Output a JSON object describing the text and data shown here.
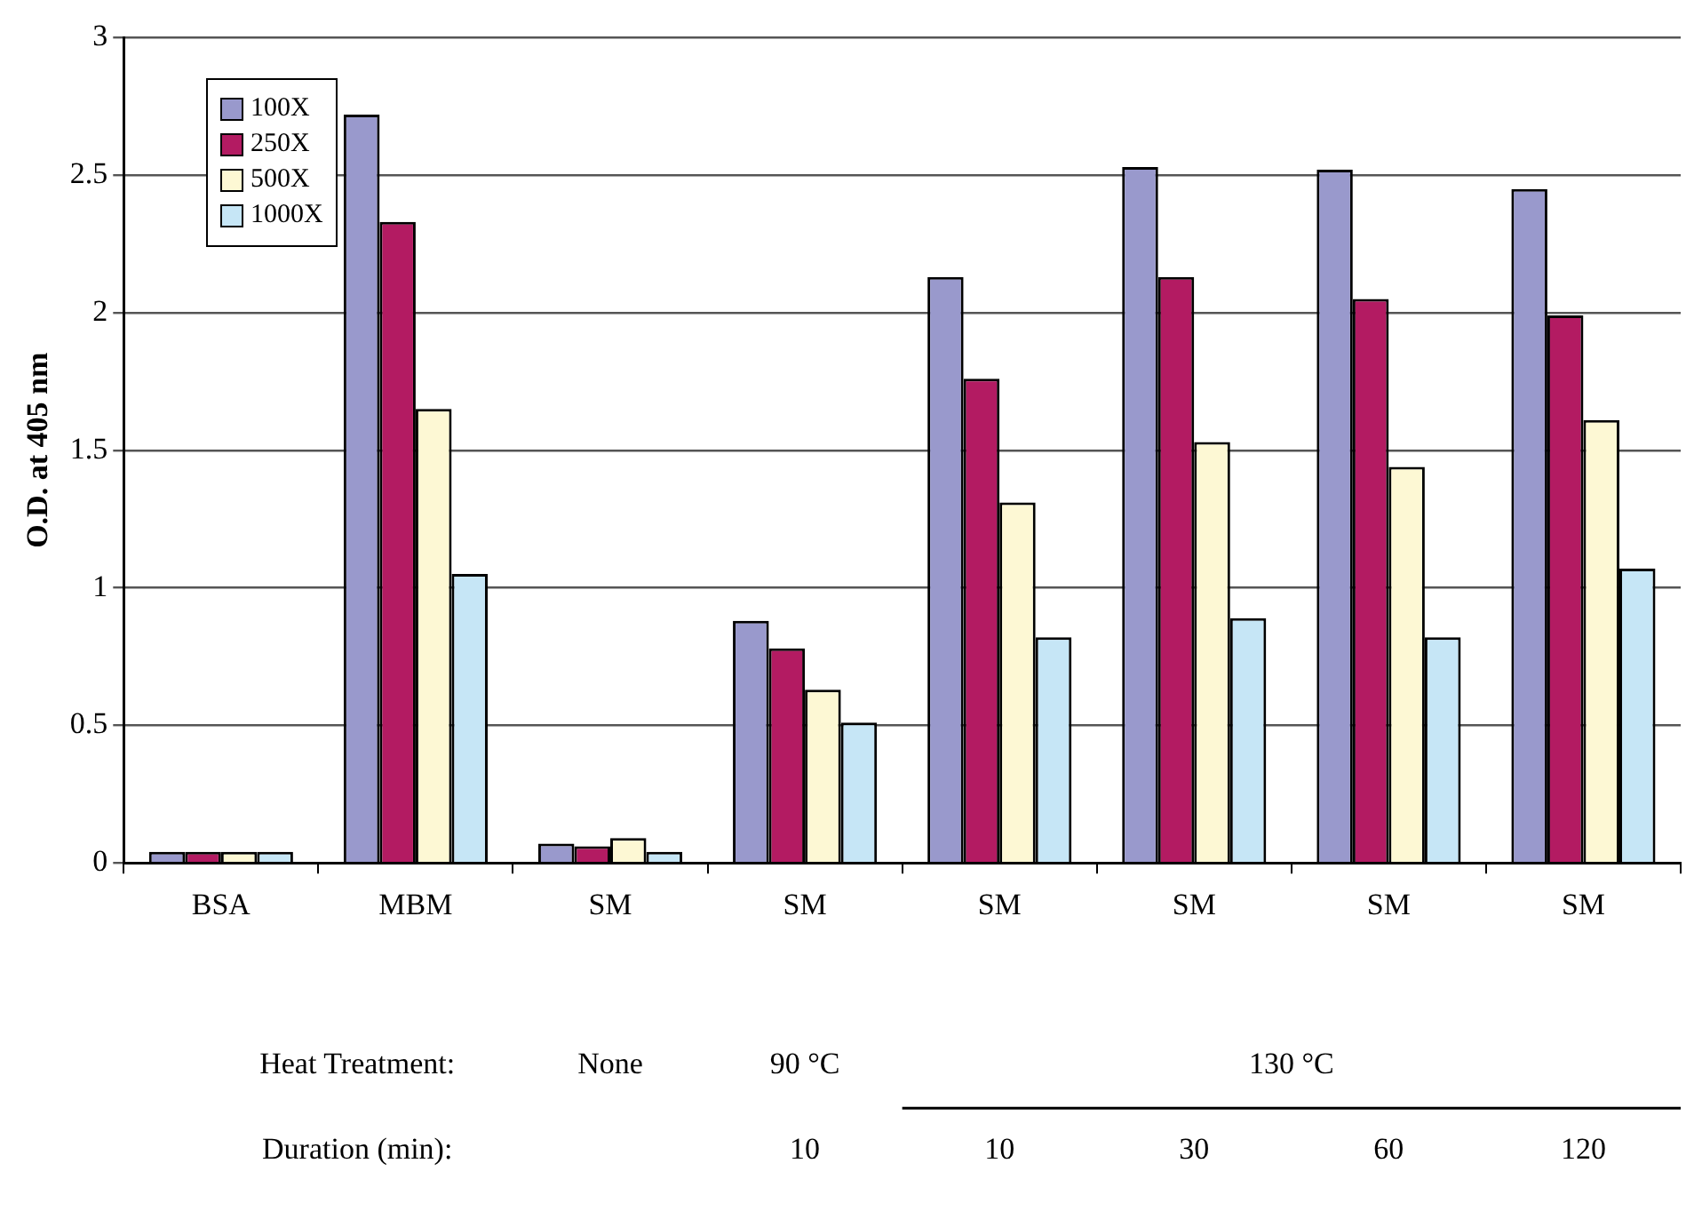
{
  "chart_data": {
    "type": "bar",
    "ylabel": "O.D. at 405 nm",
    "categories": [
      "BSA",
      "MBM",
      "SM",
      "SM",
      "SM",
      "SM",
      "SM",
      "SM"
    ],
    "series": [
      {
        "name": "100X",
        "color": "#9999cc",
        "values": [
          0.04,
          2.72,
          0.07,
          0.88,
          2.13,
          2.53,
          2.52,
          2.45
        ]
      },
      {
        "name": "250X",
        "color": "#b31b62",
        "values": [
          0.04,
          2.33,
          0.06,
          0.78,
          1.76,
          2.13,
          2.05,
          1.99
        ]
      },
      {
        "name": "500X",
        "color": "#fdf8d4",
        "values": [
          0.04,
          1.65,
          0.09,
          0.63,
          1.31,
          1.53,
          1.44,
          1.61
        ]
      },
      {
        "name": "1000X",
        "color": "#c6e6f6",
        "values": [
          0.04,
          1.05,
          0.04,
          0.51,
          0.82,
          0.89,
          0.82,
          1.07
        ]
      }
    ],
    "ylim": [
      0,
      3
    ],
    "yticks": [
      0,
      0.5,
      1,
      1.5,
      2,
      2.5,
      3
    ],
    "grid": "y",
    "legend": "top left",
    "annotations": [
      "Heat Treatment:",
      "None",
      "90 °C",
      "130 °C",
      "Duration (min):",
      "10",
      "10",
      "30",
      "60",
      "120"
    ]
  }
}
